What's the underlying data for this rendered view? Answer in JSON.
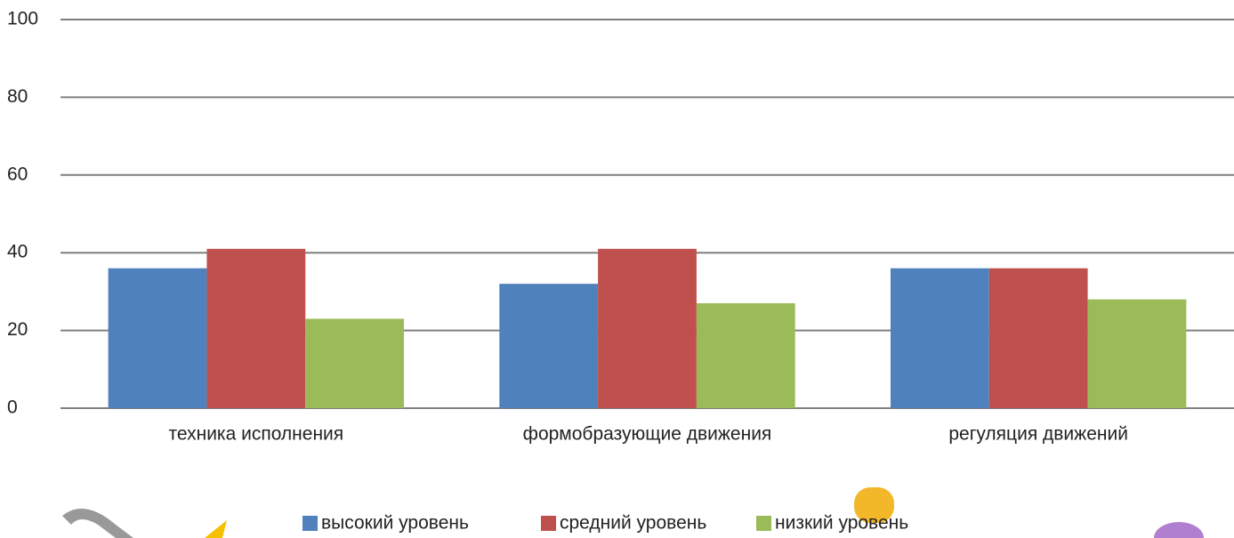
{
  "chart_data": {
    "type": "bar",
    "categories": [
      "техника исполнения",
      "формобразующие движения",
      "регуляция движений"
    ],
    "series": [
      {
        "name": "высокий уровень",
        "color": "#4f81bd",
        "values": [
          36,
          32,
          36
        ]
      },
      {
        "name": "средний уровень",
        "color": "#c0504d",
        "values": [
          41,
          41,
          36
        ]
      },
      {
        "name": "низкий уровень",
        "color": "#9bbb59",
        "values": [
          23,
          27,
          28
        ]
      }
    ],
    "ylim": [
      0,
      100
    ],
    "yticks": [
      0,
      20,
      40,
      60,
      80,
      100
    ],
    "grid": true,
    "legend": "bottom"
  }
}
